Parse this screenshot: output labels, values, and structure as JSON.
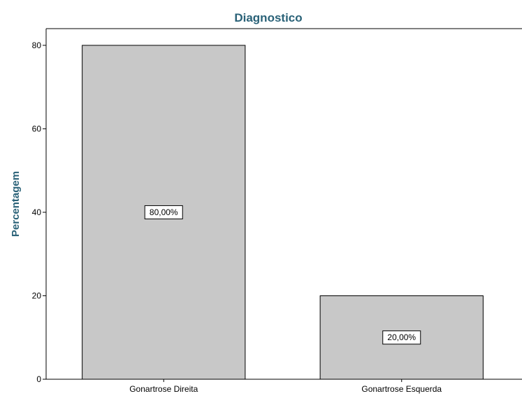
{
  "chart_data": {
    "type": "bar",
    "title": "Diagnostico",
    "xlabel": "",
    "ylabel": "Percentagem",
    "categories": [
      "Gonartrose Direita",
      "Gonartrose Esquerda"
    ],
    "values": [
      80,
      20
    ],
    "data_labels": [
      "80,00%",
      "20,00%"
    ],
    "ylim": [
      0,
      84
    ],
    "yticks": [
      0,
      20,
      40,
      60,
      80
    ],
    "ytick_labels": [
      "0",
      "20",
      "40",
      "60",
      "80"
    ],
    "grid": false,
    "legend": "none"
  },
  "colors": {
    "bar_fill": "#c8c8c8",
    "bar_stroke": "#000000",
    "title": "#2a6278",
    "axis_label": "#2a6278",
    "axis": "#000000"
  }
}
